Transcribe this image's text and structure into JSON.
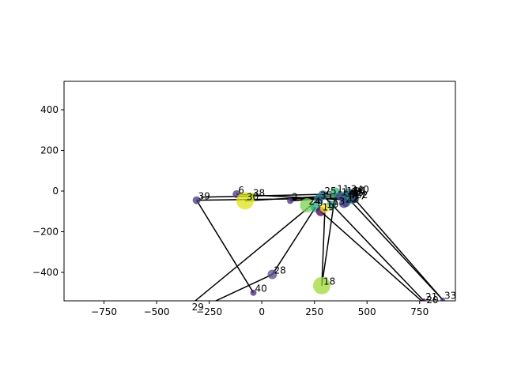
{
  "chart_data": {
    "type": "scatter",
    "title": "",
    "xlabel": "",
    "ylabel": "",
    "xlim": [
      -940,
      920
    ],
    "ylim": [
      -540,
      540
    ],
    "grid": false,
    "xticks": [
      -750,
      -500,
      -250,
      0,
      250,
      500,
      750
    ],
    "yticks": [
      -400,
      -200,
      0,
      200,
      400
    ],
    "points": [
      {
        "label": "6",
        "x": -120,
        "y": -15,
        "size": 5,
        "color": "#46337e"
      },
      {
        "label": "39",
        "x": -310,
        "y": -45,
        "size": 5,
        "color": "#453781"
      },
      {
        "label": "30",
        "x": -80,
        "y": -48,
        "size": 11,
        "color": "#e0e31c"
      },
      {
        "label": "38",
        "x": -50,
        "y": -30,
        "size": 6,
        "color": "#bddf26"
      },
      {
        "label": "2",
        "x": 135,
        "y": -48,
        "size": 4,
        "color": "#472c7a"
      },
      {
        "label": "24",
        "x": 215,
        "y": -70,
        "size": 9,
        "color": "#7ad151"
      },
      {
        "label": "35",
        "x": 270,
        "y": -40,
        "size": 6,
        "color": "#2a788e"
      },
      {
        "label": "9",
        "x": 255,
        "y": -80,
        "size": 6,
        "color": "#22a884"
      },
      {
        "label": "25",
        "x": 290,
        "y": -20,
        "size": 6,
        "color": "#2c728e"
      },
      {
        "label": "13",
        "x": 330,
        "y": -70,
        "size": 6,
        "color": "#1f9e89"
      },
      {
        "label": "11",
        "x": 350,
        "y": -10,
        "size": 7,
        "color": "#35b779"
      },
      {
        "label": "19",
        "x": 280,
        "y": -100,
        "size": 6,
        "color": "#440154"
      },
      {
        "label": "10",
        "x": 300,
        "y": -85,
        "size": 6,
        "color": "#fde725"
      },
      {
        "label": "1",
        "x": 370,
        "y": -25,
        "size": 5,
        "color": "#3e4a89"
      },
      {
        "label": "14",
        "x": 395,
        "y": -20,
        "size": 5,
        "color": "#31688e"
      },
      {
        "label": "4",
        "x": 405,
        "y": -30,
        "size": 5,
        "color": "#26828e"
      },
      {
        "label": "5",
        "x": 410,
        "y": -35,
        "size": 5,
        "color": "#414487"
      },
      {
        "label": "7",
        "x": 415,
        "y": -40,
        "size": 5,
        "color": "#355f8d"
      },
      {
        "label": "12",
        "x": 400,
        "y": -55,
        "size": 6,
        "color": "#365c8d"
      },
      {
        "label": "15",
        "x": 420,
        "y": -28,
        "size": 5,
        "color": "#21918c"
      },
      {
        "label": "16",
        "x": 425,
        "y": -18,
        "size": 5,
        "color": "#3b528b"
      },
      {
        "label": "17",
        "x": 430,
        "y": -45,
        "size": 5,
        "color": "#1fa088"
      },
      {
        "label": "31",
        "x": 435,
        "y": -22,
        "size": 5,
        "color": "#482878"
      },
      {
        "label": "32",
        "x": 440,
        "y": -38,
        "size": 5,
        "color": "#3e4989"
      },
      {
        "label": "40",
        "x": 445,
        "y": -12,
        "size": 5,
        "color": "#2d708e"
      },
      {
        "label": "3",
        "x": 415,
        "y": -10,
        "size": 6,
        "color": "#287c8e"
      },
      {
        "label": "22",
        "x": 390,
        "y": -60,
        "size": 6,
        "color": "#433e85"
      },
      {
        "label": "28",
        "x": 50,
        "y": -410,
        "size": 6,
        "color": "#5b4a8c"
      },
      {
        "label": "40",
        "x": -40,
        "y": -500,
        "size": 4,
        "color": "#482475"
      },
      {
        "label": "18",
        "x": 285,
        "y": -465,
        "size": 11,
        "color": "#a0da39"
      },
      {
        "label": "33",
        "x": 860,
        "y": -535,
        "size": 3,
        "color": "#46327e"
      },
      {
        "label": "21",
        "x": 770,
        "y": -540,
        "size": 3,
        "color": "#440154"
      },
      {
        "label": "20",
        "x": 775,
        "y": -555,
        "size": 3,
        "color": "#440154"
      },
      {
        "label": "29",
        "x": -340,
        "y": -590,
        "size": 3,
        "color": "#440154"
      }
    ],
    "edges": [
      [
        -310,
        -45,
        410,
        -35
      ],
      [
        -120,
        -15,
        430,
        -45
      ],
      [
        -80,
        -48,
        395,
        -20
      ],
      [
        135,
        -48,
        420,
        -28
      ],
      [
        -310,
        -45,
        -40,
        -500
      ],
      [
        50,
        -410,
        255,
        -80
      ],
      [
        285,
        -465,
        300,
        -85
      ],
      [
        285,
        -465,
        350,
        -10
      ],
      [
        860,
        -535,
        410,
        -35
      ],
      [
        860,
        -535,
        440,
        -38
      ],
      [
        770,
        -540,
        290,
        -20
      ],
      [
        775,
        -555,
        280,
        -100
      ],
      [
        -260,
        -560,
        50,
        -410
      ],
      [
        -340,
        -560,
        270,
        -40
      ],
      [
        -290,
        -30,
        445,
        -12
      ]
    ]
  }
}
